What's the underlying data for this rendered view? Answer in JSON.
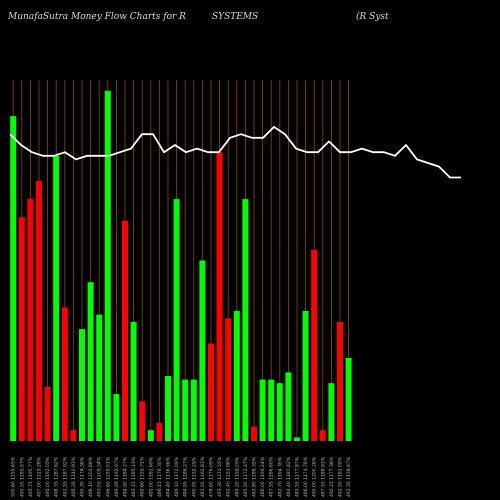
{
  "header": {
    "left": "MunafaSutra  Money Flow  Charts for R",
    "middle": "SYSTEMS",
    "right": "(R Syst"
  },
  "chart_data": {
    "type": "bar+line",
    "bar_colors": {
      "up": "#00ff00",
      "down": "#ff0000"
    },
    "line_color": "#ffffff",
    "grid_color": "#8a4a00",
    "background": "#000000",
    "ylim": [
      0,
      100
    ],
    "bars": [
      {
        "label": "500.60 1259.65%",
        "value": 90,
        "color": "green"
      },
      {
        "label": "490.55 1185.97%",
        "value": 62,
        "color": "red"
      },
      {
        "label": "495.75 1195.77%",
        "value": 67,
        "color": "red"
      },
      {
        "label": "497.00 1225.28%",
        "value": 72,
        "color": "red"
      },
      {
        "label": "495.00 1192.05%",
        "value": 15,
        "color": "red"
      },
      {
        "label": "498.35 1287.62%",
        "value": 79,
        "color": "green"
      },
      {
        "label": "491.55 1187.92%",
        "value": 37,
        "color": "red"
      },
      {
        "label": "495.35 1140.93%",
        "value": 3,
        "color": "red"
      },
      {
        "label": "490.30 1174.36%",
        "value": 31,
        "color": "green"
      },
      {
        "label": "496.10 1202.88%",
        "value": 44,
        "color": "green"
      },
      {
        "label": "493.05 1205.34%",
        "value": 35,
        "color": "green"
      },
      {
        "label": "496.60 1259.01%",
        "value": 97,
        "color": "green"
      },
      {
        "label": "489.95 1192.97%",
        "value": 13,
        "color": "green"
      },
      {
        "label": "484.90 1184.27%",
        "value": 61,
        "color": "red"
      },
      {
        "label": "483.15 1185.13%",
        "value": 33,
        "color": "green"
      },
      {
        "label": "485.60 1155.71%",
        "value": 11,
        "color": "red"
      },
      {
        "label": "485.00 1182.69%",
        "value": 3,
        "color": "green"
      },
      {
        "label": "486.15 1176.30%",
        "value": 5,
        "color": "red"
      },
      {
        "label": "484.40 1136.96%",
        "value": 18,
        "color": "green"
      },
      {
        "label": "489.10 1172.09%",
        "value": 67,
        "color": "green"
      },
      {
        "label": "484.95 1186.27%",
        "value": 17,
        "color": "green"
      },
      {
        "label": "480.95 1152.25%",
        "value": 17,
        "color": "green"
      },
      {
        "label": "481.55 1162.83%",
        "value": 50,
        "color": "green"
      },
      {
        "label": "478.60 1176.09%",
        "value": 27,
        "color": "red"
      },
      {
        "label": "493.30 1231.55%",
        "value": 80,
        "color": "red"
      },
      {
        "label": "491.40 1151.96%",
        "value": 34,
        "color": "red"
      },
      {
        "label": "489.20 1199.29%",
        "value": 36,
        "color": "green"
      },
      {
        "label": "485.50 1172.47%",
        "value": 67,
        "color": "green"
      },
      {
        "label": "483.80 1188.35%",
        "value": 4,
        "color": "red"
      },
      {
        "label": "486.00 1194.24%",
        "value": 17,
        "color": "green"
      },
      {
        "label": "487.55 1186.60%",
        "value": 17,
        "color": "green"
      },
      {
        "label": "482.70 1194.30%",
        "value": 16,
        "color": "green"
      },
      {
        "label": "484.40 1187.82%",
        "value": 19,
        "color": "green"
      },
      {
        "label": "485.55 1177.87%",
        "value": 1,
        "color": "green"
      },
      {
        "label": "486.00 1174.78%",
        "value": 36,
        "color": "green"
      },
      {
        "label": "490.00 1200.26%",
        "value": 53,
        "color": "red"
      },
      {
        "label": "487.55 1188.91%",
        "value": 3,
        "color": "red"
      },
      {
        "label": "490.25 1177.36%",
        "value": 16,
        "color": "green"
      },
      {
        "label": "491.50 1182.09%",
        "value": 33,
        "color": "red"
      },
      {
        "label": "492.35 1138.97%",
        "value": 23,
        "color": "green"
      }
    ],
    "line": [
      85,
      82,
      80,
      79,
      79,
      80,
      78,
      79,
      79,
      79,
      80,
      81,
      85,
      85,
      80,
      82,
      80,
      81,
      80,
      80,
      84,
      85,
      84,
      84,
      87,
      85,
      81,
      80,
      80,
      83,
      80,
      80,
      81,
      80,
      80,
      79,
      82,
      78,
      77,
      76,
      73,
      73
    ]
  }
}
